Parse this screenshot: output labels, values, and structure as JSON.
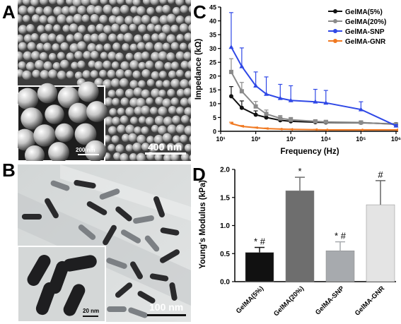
{
  "panels": {
    "a": {
      "letter": "A",
      "scale_main": "400 nm",
      "scale_inset": "200 nm"
    },
    "b": {
      "letter": "B",
      "scale_main": "100 nm",
      "scale_inset": "20 nm"
    },
    "c": {
      "letter": "C"
    },
    "d": {
      "letter": "D"
    }
  },
  "chart_data": [
    {
      "panel": "C",
      "type": "line",
      "xlabel": "Frequency (Hz)",
      "ylabel": "Impedance (kΩ)",
      "xscale": "log",
      "xlim": [
        10,
        1000000
      ],
      "ylim": [
        0,
        45
      ],
      "x_ticks": [
        "10¹",
        "10²",
        "10³",
        "10⁴",
        "10⁵",
        "10⁶"
      ],
      "y_ticks": [
        0,
        5,
        10,
        15,
        20,
        25,
        30,
        35,
        40,
        45
      ],
      "legend_position": "top-right",
      "series": [
        {
          "name": "GelMA(5%)",
          "color": "#111111",
          "x": [
            20,
            40,
            100,
            200,
            500,
            1000,
            5000,
            10000,
            100000,
            1000000
          ],
          "y": [
            12.7,
            8.5,
            6.0,
            5.0,
            4.0,
            3.6,
            3.3,
            3.2,
            3.1,
            2.6
          ],
          "err": [
            3.5,
            2.5,
            1.4,
            1.0,
            0.8,
            0.6,
            0.5,
            0.5,
            0.4,
            0.4
          ]
        },
        {
          "name": "GelMA(20%)",
          "color": "#8a8a8a",
          "x": [
            20,
            40,
            100,
            200,
            500,
            1000,
            5000,
            10000,
            100000,
            1000000
          ],
          "y": [
            21.5,
            14.5,
            9.0,
            6.3,
            4.7,
            4.2,
            3.6,
            3.4,
            3.2,
            2.5
          ],
          "err": [
            4.8,
            3.2,
            1.8,
            1.4,
            1.0,
            0.8,
            0.6,
            0.5,
            0.4,
            0.4
          ]
        },
        {
          "name": "GelMA-SNP",
          "color": "#2f48e6",
          "x": [
            20,
            40,
            100,
            200,
            500,
            1000,
            5000,
            10000,
            100000,
            1000000
          ],
          "y": [
            30.5,
            23.5,
            16.5,
            13.5,
            12.0,
            11.2,
            10.7,
            10.3,
            7.9,
            2.0
          ],
          "err": [
            12.5,
            6.7,
            5.0,
            6.2,
            5.0,
            5.3,
            4.5,
            4.5,
            2.8,
            0.4
          ]
        },
        {
          "name": "GelMA-GNR",
          "color": "#f07820",
          "x": [
            20,
            40,
            100,
            200,
            500,
            1000,
            5000,
            10000,
            100000,
            1000000
          ],
          "y": [
            2.8,
            1.8,
            1.3,
            1.0,
            0.8,
            0.7,
            0.6,
            0.5,
            0.5,
            0.5
          ],
          "err": [
            0.5,
            0.3,
            0.2,
            0.2,
            0.1,
            0.1,
            0.1,
            0.1,
            0.1,
            0.1
          ]
        }
      ]
    },
    {
      "panel": "D",
      "type": "bar",
      "xlabel": "",
      "ylabel": "Young's Modulus (kPa)",
      "ylim": [
        0,
        2.0
      ],
      "y_ticks": [
        "0.0",
        "0.5",
        "1.0",
        "1.5",
        "2.0"
      ],
      "categories": [
        "GelMA(5%)",
        "GelMA(20%)",
        "GelMA-SNP",
        "GelMA-GNR"
      ],
      "values": [
        0.52,
        1.62,
        0.55,
        1.37
      ],
      "errors": [
        0.09,
        0.24,
        0.16,
        0.43
      ],
      "annotations": [
        "* #",
        "*",
        "* #",
        "#"
      ],
      "colors": [
        "#111111",
        "#6e6e6e",
        "#a7aaae",
        "#e4e4e4"
      ]
    }
  ]
}
